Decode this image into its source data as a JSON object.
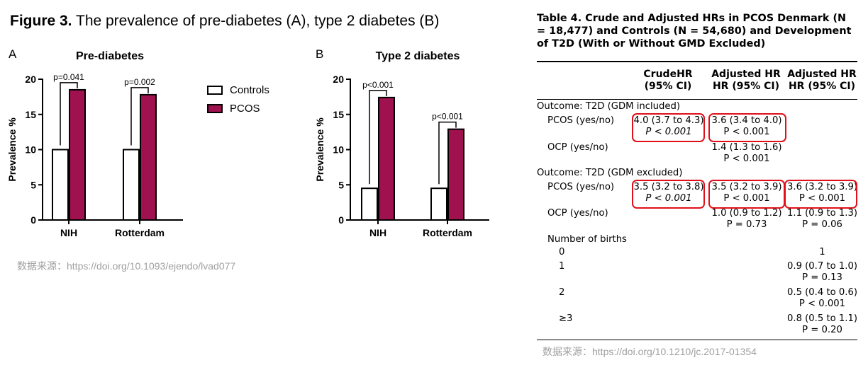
{
  "figure": {
    "title_bold": "Figure 3.",
    "title_rest": " The prevalence of pre-diabetes (A), type 2 diabetes (B)",
    "source": "数据来源：https://doi.org/10.1093/ejendo/lvad077"
  },
  "legend": {
    "items": [
      {
        "label": "Controls",
        "color": "#ffffff"
      },
      {
        "label": "PCOS",
        "color": "#a0124f"
      }
    ]
  },
  "chart_data": [
    {
      "type": "bar",
      "panel": "A",
      "title": "Pre-diabetes",
      "ylabel": "Prevalence %",
      "xlabel": "",
      "categories": [
        "NIH",
        "Rotterdam"
      ],
      "series": [
        {
          "name": "Controls",
          "values": [
            10,
            10
          ]
        },
        {
          "name": "PCOS",
          "values": [
            18.5,
            17.8
          ]
        }
      ],
      "ylim": [
        0,
        20
      ],
      "yticks": [
        0,
        5,
        10,
        15,
        20
      ],
      "annotations": [
        "p=0.041",
        "p=0.002"
      ],
      "grid": false
    },
    {
      "type": "bar",
      "panel": "B",
      "title": "Type 2 diabetes",
      "ylabel": "Prevalence %",
      "xlabel": "",
      "categories": [
        "NIH",
        "Rotterdam"
      ],
      "series": [
        {
          "name": "Controls",
          "values": [
            4.5,
            4.5
          ]
        },
        {
          "name": "PCOS",
          "values": [
            17.4,
            12.9
          ]
        }
      ],
      "ylim": [
        0,
        20
      ],
      "yticks": [
        0,
        5,
        10,
        15,
        20
      ],
      "annotations": [
        "p<0.001",
        "p<0.001"
      ],
      "grid": false
    },
    {
      "type": "table",
      "title": "Table 4.    Crude and Adjusted HRs in PCOS Denmark (N = 18,477) and Controls (N = 54,680) and Development of T2D (With or Without GMD Excluded)",
      "columns": [
        "",
        "CrudeHR (95% CI)",
        "Adjusted HR HR (95% CI)",
        "Adjusted HR HR (95% CI)"
      ],
      "header_lines": [
        [
          "CrudeHR",
          "(95% CI)"
        ],
        [
          "Adjusted HR",
          "HR (95% CI)"
        ],
        [
          "Adjusted HR",
          "HR (95% CI)"
        ]
      ],
      "rows": [
        {
          "label": "Outcome: T2D (GDM included)",
          "cells": [
            "",
            "",
            ""
          ]
        },
        {
          "label": "PCOS (yes/no)",
          "cells": [
            [
              "4.0 (3.7 to 4.3)",
              "P < 0.001"
            ],
            [
              "3.6 (3.4 to 4.0)",
              "P < 0.001"
            ],
            ""
          ]
        },
        {
          "label": "OCP (yes/no)",
          "cells": [
            "",
            [
              "1.4 (1.3 to 1.6)",
              "P < 0.001"
            ],
            ""
          ]
        },
        {
          "label": "Outcome: T2D (GDM excluded)",
          "cells": [
            "",
            "",
            ""
          ]
        },
        {
          "label": "PCOS (yes/no)",
          "cells": [
            [
              "3.5 (3.2 to 3.8)",
              "P < 0.001"
            ],
            [
              "3.5 (3.2 to 3.9)",
              "P < 0.001"
            ],
            [
              "3.6 (3.2 to 3.9)",
              "P < 0.001"
            ]
          ]
        },
        {
          "label": "OCP (yes/no)",
          "cells": [
            "",
            [
              "1.0 (0.9 to 1.2)",
              "P = 0.73"
            ],
            [
              "1.1 (0.9 to 1.3)",
              "P = 0.06"
            ]
          ]
        },
        {
          "label": "Number of births",
          "cells": [
            "",
            "",
            ""
          ]
        },
        {
          "label": "0",
          "cells": [
            "",
            "",
            "1"
          ]
        },
        {
          "label": "1",
          "cells": [
            "",
            "",
            [
              "0.9 (0.7 to 1.0)",
              "P = 0.13"
            ]
          ]
        },
        {
          "label": "2",
          "cells": [
            "",
            "",
            [
              "0.5 (0.4 to 0.6)",
              "P < 0.001"
            ]
          ]
        },
        {
          "label": "≥3",
          "cells": [
            "",
            "",
            [
              "0.8 (0.5 to 1.1)",
              "P = 0.20"
            ]
          ]
        }
      ],
      "highlight_color": "#e0101a",
      "source": "数据来源：https://doi.org/10.1210/jc.2017-01354"
    }
  ]
}
